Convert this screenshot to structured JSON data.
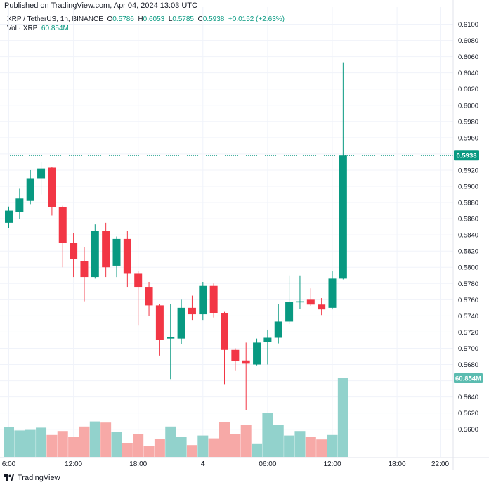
{
  "published_note": "Published on TradingView.com, Apr 04, 2024 13:03 UTC",
  "legend": {
    "symbol": "XRP / TetherUS, 1h, BINANCE",
    "o_label": "O",
    "o": "0.5786",
    "h_label": "H",
    "h": "0.6053",
    "l_label": "L",
    "l": "0.5785",
    "c_label": "C",
    "c": "0.5938",
    "change": "+0.0152 (+2.63%)",
    "vol_label": "Vol · XRP",
    "vol_value": "60.854M"
  },
  "footer": {
    "brand": "TradingView"
  },
  "colors": {
    "up": "#089981",
    "down": "#f23645",
    "vol_up": "#92d2cc",
    "vol_down": "#f7a9a7",
    "grid": "#f0f3fa"
  },
  "chart_data": {
    "type": "candlestick",
    "symbol": "XRP / TetherUS",
    "interval": "1h",
    "exchange": "BINANCE",
    "ylim": [
      0.5585,
      0.611
    ],
    "y_ticks": [
      "0.6100",
      "0.6080",
      "0.6060",
      "0.6040",
      "0.6020",
      "0.6000",
      "0.5980",
      "0.5960",
      "0.5940",
      "0.5920",
      "0.5900",
      "0.5880",
      "0.5860",
      "0.5840",
      "0.5820",
      "0.5800",
      "0.5780",
      "0.5760",
      "0.5740",
      "0.5720",
      "0.5700",
      "0.5680",
      "0.5660",
      "0.5640",
      "0.5620",
      "0.5600"
    ],
    "x_ticks": [
      {
        "label": "6:00",
        "index": 0
      },
      {
        "label": "12:00",
        "index": 6
      },
      {
        "label": "18:00",
        "index": 12
      },
      {
        "label": "4",
        "index": 18
      },
      {
        "label": "06:00",
        "index": 24
      },
      {
        "label": "12:00",
        "index": 30
      },
      {
        "label": "18:00",
        "index": 36
      },
      {
        "label": "22:00",
        "index": 40
      }
    ],
    "last_price": "0.5938",
    "last_volume": "60.854M",
    "candles": [
      {
        "o": 0.5855,
        "h": 0.5875,
        "l": 0.5848,
        "c": 0.587,
        "v": 0.53
      },
      {
        "o": 0.5868,
        "h": 0.5897,
        "l": 0.586,
        "c": 0.5885,
        "v": 0.47
      },
      {
        "o": 0.5882,
        "h": 0.592,
        "l": 0.5878,
        "c": 0.591,
        "v": 0.48
      },
      {
        "o": 0.591,
        "h": 0.593,
        "l": 0.589,
        "c": 0.5922,
        "v": 0.52
      },
      {
        "o": 0.5923,
        "h": 0.5924,
        "l": 0.5864,
        "c": 0.5874,
        "v": 0.39
      },
      {
        "o": 0.5874,
        "h": 0.5876,
        "l": 0.58,
        "c": 0.583,
        "v": 0.46
      },
      {
        "o": 0.583,
        "h": 0.5842,
        "l": 0.5788,
        "c": 0.581,
        "v": 0.35
      },
      {
        "o": 0.5808,
        "h": 0.5825,
        "l": 0.5758,
        "c": 0.5788,
        "v": 0.54
      },
      {
        "o": 0.5788,
        "h": 0.5853,
        "l": 0.5786,
        "c": 0.5845,
        "v": 0.63
      },
      {
        "o": 0.5845,
        "h": 0.5855,
        "l": 0.5788,
        "c": 0.58,
        "v": 0.61
      },
      {
        "o": 0.5802,
        "h": 0.5838,
        "l": 0.5788,
        "c": 0.5835,
        "v": 0.45
      },
      {
        "o": 0.5835,
        "h": 0.5845,
        "l": 0.5775,
        "c": 0.5792,
        "v": 0.25
      },
      {
        "o": 0.5792,
        "h": 0.5795,
        "l": 0.5728,
        "c": 0.5775,
        "v": 0.4
      },
      {
        "o": 0.5775,
        "h": 0.5782,
        "l": 0.574,
        "c": 0.5753,
        "v": 0.19
      },
      {
        "o": 0.5753,
        "h": 0.5755,
        "l": 0.5691,
        "c": 0.571,
        "v": 0.32
      },
      {
        "o": 0.5712,
        "h": 0.5755,
        "l": 0.5662,
        "c": 0.5714,
        "v": 0.54
      },
      {
        "o": 0.5712,
        "h": 0.576,
        "l": 0.5705,
        "c": 0.575,
        "v": 0.36
      },
      {
        "o": 0.575,
        "h": 0.5765,
        "l": 0.5735,
        "c": 0.5742,
        "v": 0.21
      },
      {
        "o": 0.5742,
        "h": 0.5782,
        "l": 0.5735,
        "c": 0.5777,
        "v": 0.38
      },
      {
        "o": 0.5777,
        "h": 0.578,
        "l": 0.5738,
        "c": 0.5743,
        "v": 0.33
      },
      {
        "o": 0.5743,
        "h": 0.5745,
        "l": 0.5655,
        "c": 0.5698,
        "v": 0.62
      },
      {
        "o": 0.5698,
        "h": 0.57,
        "l": 0.5672,
        "c": 0.5684,
        "v": 0.41
      },
      {
        "o": 0.5685,
        "h": 0.5707,
        "l": 0.5624,
        "c": 0.5681,
        "v": 0.57
      },
      {
        "o": 0.568,
        "h": 0.5712,
        "l": 0.5679,
        "c": 0.5707,
        "v": 0.24
      },
      {
        "o": 0.5708,
        "h": 0.5723,
        "l": 0.568,
        "c": 0.5713,
        "v": 0.78
      },
      {
        "o": 0.5713,
        "h": 0.5755,
        "l": 0.5706,
        "c": 0.5733,
        "v": 0.57
      },
      {
        "o": 0.5733,
        "h": 0.579,
        "l": 0.573,
        "c": 0.5757,
        "v": 0.38
      },
      {
        "o": 0.5757,
        "h": 0.579,
        "l": 0.5749,
        "c": 0.5758,
        "v": 0.46
      },
      {
        "o": 0.576,
        "h": 0.5774,
        "l": 0.5752,
        "c": 0.5754,
        "v": 0.35
      },
      {
        "o": 0.5754,
        "h": 0.5762,
        "l": 0.5741,
        "c": 0.5748,
        "v": 0.31
      },
      {
        "o": 0.575,
        "h": 0.5795,
        "l": 0.5748,
        "c": 0.5786,
        "v": 0.39
      },
      {
        "o": 0.5786,
        "h": 0.6053,
        "l": 0.5785,
        "c": 0.5938,
        "v": 1.4
      }
    ]
  }
}
